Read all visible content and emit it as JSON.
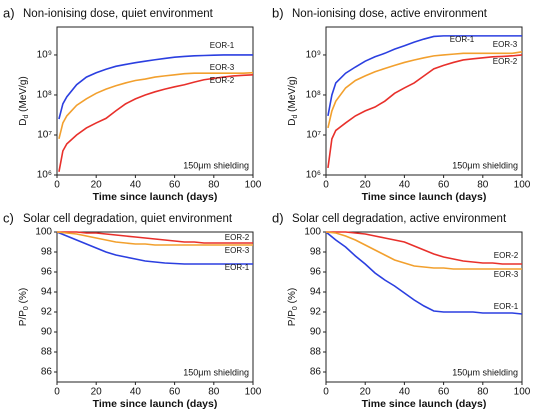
{
  "chart_data": [
    {
      "type": "line",
      "panel_label": "a)",
      "title": "Non-ionising dose, quiet environment",
      "ylabel": {
        "main": "D",
        "sub": "d",
        "rest": " (MeV/g)"
      },
      "xlabel": "Time since launch (days)",
      "annotation": "150μm shielding",
      "log_y": true,
      "xlim": [
        0,
        100
      ],
      "xticks": [
        0,
        20,
        40,
        60,
        80,
        100
      ],
      "ylim": [
        1000000,
        5000000000
      ],
      "yticks": [
        {
          "value": 1000000,
          "label": "10⁶"
        },
        {
          "value": 10000000,
          "label": "10⁷"
        },
        {
          "value": 100000000,
          "label": "10⁸"
        },
        {
          "value": 1000000000,
          "label": "10⁹"
        }
      ],
      "x": [
        1,
        3,
        5,
        10,
        15,
        20,
        25,
        30,
        35,
        40,
        45,
        50,
        55,
        60,
        65,
        70,
        75,
        80,
        85,
        90,
        95,
        100
      ],
      "series": [
        {
          "name": "EOR-1",
          "color": "#2b3fe0",
          "values": [
            25000000,
            60000000,
            90000000,
            180000000,
            280000000,
            360000000,
            440000000,
            520000000,
            580000000,
            640000000,
            700000000,
            760000000,
            820000000,
            880000000,
            920000000,
            950000000,
            970000000,
            990000000,
            1000000000,
            1000000000,
            1000000000,
            1000000000
          ]
        },
        {
          "name": "EOR-2",
          "color": "#e8302b",
          "values": [
            1200000,
            4000000,
            6000000,
            10000000,
            15000000,
            20000000,
            26000000,
            40000000,
            60000000,
            80000000,
            100000000,
            120000000,
            140000000,
            160000000,
            180000000,
            210000000,
            240000000,
            260000000,
            280000000,
            300000000,
            310000000,
            320000000
          ]
        },
        {
          "name": "EOR-3",
          "color": "#f2a02e",
          "values": [
            8000000,
            20000000,
            30000000,
            55000000,
            80000000,
            110000000,
            140000000,
            170000000,
            200000000,
            230000000,
            250000000,
            280000000,
            300000000,
            320000000,
            340000000,
            350000000,
            350000000,
            350000000,
            350000000,
            350000000,
            350000000,
            360000000
          ]
        }
      ]
    },
    {
      "type": "line",
      "panel_label": "b)",
      "title": "Non-ionising dose, active environment",
      "ylabel": {
        "main": "D",
        "sub": "d",
        "rest": " (MeV/g)"
      },
      "xlabel": "Time since launch (days)",
      "annotation": "150μm shielding",
      "log_y": true,
      "xlim": [
        0,
        100
      ],
      "xticks": [
        0,
        20,
        40,
        60,
        80,
        100
      ],
      "ylim": [
        1000000,
        5000000000
      ],
      "yticks": [
        {
          "value": 1000000,
          "label": "10⁶"
        },
        {
          "value": 10000000,
          "label": "10⁷"
        },
        {
          "value": 100000000,
          "label": "10⁸"
        },
        {
          "value": 1000000000,
          "label": "10⁹"
        }
      ],
      "x": [
        1,
        3,
        5,
        10,
        15,
        20,
        25,
        30,
        35,
        40,
        45,
        50,
        55,
        60,
        65,
        70,
        75,
        80,
        85,
        90,
        95,
        100
      ],
      "series": [
        {
          "name": "EOR-1",
          "color": "#2b3fe0",
          "values": [
            30000000,
            100000000,
            200000000,
            350000000,
            500000000,
            700000000,
            900000000,
            1100000000,
            1400000000,
            1700000000,
            2100000000,
            2500000000,
            2900000000,
            3000000000,
            3000000000,
            3000000000,
            3000000000,
            3000000000,
            3000000000,
            3000000000,
            3000000000,
            3000000000
          ]
        },
        {
          "name": "EOR-2",
          "color": "#e8302b",
          "values": [
            1500000,
            8000000,
            13000000,
            20000000,
            30000000,
            40000000,
            50000000,
            70000000,
            110000000,
            150000000,
            200000000,
            300000000,
            450000000,
            550000000,
            650000000,
            750000000,
            800000000,
            850000000,
            900000000,
            920000000,
            950000000,
            1000000000
          ]
        },
        {
          "name": "EOR-3",
          "color": "#f2a02e",
          "values": [
            15000000,
            40000000,
            70000000,
            150000000,
            230000000,
            300000000,
            380000000,
            460000000,
            550000000,
            650000000,
            750000000,
            850000000,
            950000000,
            1000000000,
            1050000000,
            1100000000,
            1100000000,
            1100000000,
            1100000000,
            1100000000,
            1100000000,
            1200000000
          ]
        }
      ]
    },
    {
      "type": "line",
      "panel_label": "c)",
      "title": "Solar cell degradation, quiet environment",
      "ylabel": {
        "main": "P/P",
        "sub": "0",
        "rest": " (%)"
      },
      "xlabel": "Time since launch (days)",
      "annotation": "150μm shielding",
      "log_y": false,
      "xlim": [
        0,
        100
      ],
      "xticks": [
        0,
        20,
        40,
        60,
        80,
        100
      ],
      "ylim": [
        85,
        100
      ],
      "yticks": [
        86,
        88,
        90,
        92,
        94,
        96,
        98,
        100
      ],
      "x": [
        0,
        5,
        10,
        15,
        20,
        25,
        30,
        35,
        40,
        45,
        50,
        55,
        60,
        65,
        70,
        75,
        80,
        85,
        90,
        95,
        100
      ],
      "series": [
        {
          "name": "EOR-1",
          "color": "#2b3fe0",
          "values": [
            100,
            99.6,
            99.2,
            98.8,
            98.4,
            98.0,
            97.7,
            97.5,
            97.3,
            97.1,
            97.0,
            96.9,
            96.85,
            96.8,
            96.8,
            96.8,
            96.8,
            96.8,
            96.8,
            96.8,
            96.8
          ]
        },
        {
          "name": "EOR-2",
          "color": "#e8302b",
          "values": [
            100,
            100,
            100,
            99.9,
            99.9,
            99.8,
            99.7,
            99.6,
            99.5,
            99.4,
            99.3,
            99.2,
            99.1,
            99.0,
            99.0,
            98.9,
            98.9,
            98.9,
            98.9,
            98.9,
            98.9
          ]
        },
        {
          "name": "EOR-3",
          "color": "#f2a02e",
          "values": [
            100,
            99.9,
            99.8,
            99.6,
            99.4,
            99.2,
            99.0,
            98.9,
            98.8,
            98.8,
            98.7,
            98.7,
            98.7,
            98.7,
            98.7,
            98.7,
            98.7,
            98.7,
            98.7,
            98.7,
            98.7
          ]
        }
      ]
    },
    {
      "type": "line",
      "panel_label": "d)",
      "title": "Solar cell degradation, active environment",
      "ylabel": {
        "main": "P/P",
        "sub": "0",
        "rest": " (%)"
      },
      "xlabel": "Time since launch (days)",
      "annotation": "150μm shielding",
      "log_y": false,
      "xlim": [
        0,
        100
      ],
      "xticks": [
        0,
        20,
        40,
        60,
        80,
        100
      ],
      "ylim": [
        85,
        100
      ],
      "yticks": [
        86,
        88,
        90,
        92,
        94,
        96,
        98,
        100
      ],
      "x": [
        0,
        5,
        10,
        15,
        20,
        25,
        30,
        35,
        40,
        45,
        50,
        55,
        60,
        65,
        70,
        75,
        80,
        85,
        90,
        95,
        100
      ],
      "series": [
        {
          "name": "EOR-1",
          "color": "#2b3fe0",
          "values": [
            100,
            99.2,
            98.5,
            97.6,
            96.8,
            95.9,
            95.2,
            94.6,
            93.9,
            93.2,
            92.6,
            92.1,
            92.0,
            92.0,
            92.0,
            92.0,
            91.9,
            91.9,
            91.9,
            91.9,
            91.8
          ]
        },
        {
          "name": "EOR-2",
          "color": "#e8302b",
          "values": [
            100,
            100,
            100,
            99.9,
            99.8,
            99.6,
            99.4,
            99.2,
            99.0,
            98.6,
            98.2,
            97.8,
            97.5,
            97.3,
            97.1,
            97.0,
            96.9,
            96.9,
            96.8,
            96.8,
            96.8
          ]
        },
        {
          "name": "EOR-3",
          "color": "#f2a02e",
          "values": [
            100,
            99.9,
            99.6,
            99.2,
            98.7,
            98.2,
            97.7,
            97.2,
            96.9,
            96.6,
            96.5,
            96.4,
            96.4,
            96.3,
            96.3,
            96.3,
            96.3,
            96.3,
            96.3,
            96.3,
            96.3
          ]
        }
      ]
    }
  ]
}
